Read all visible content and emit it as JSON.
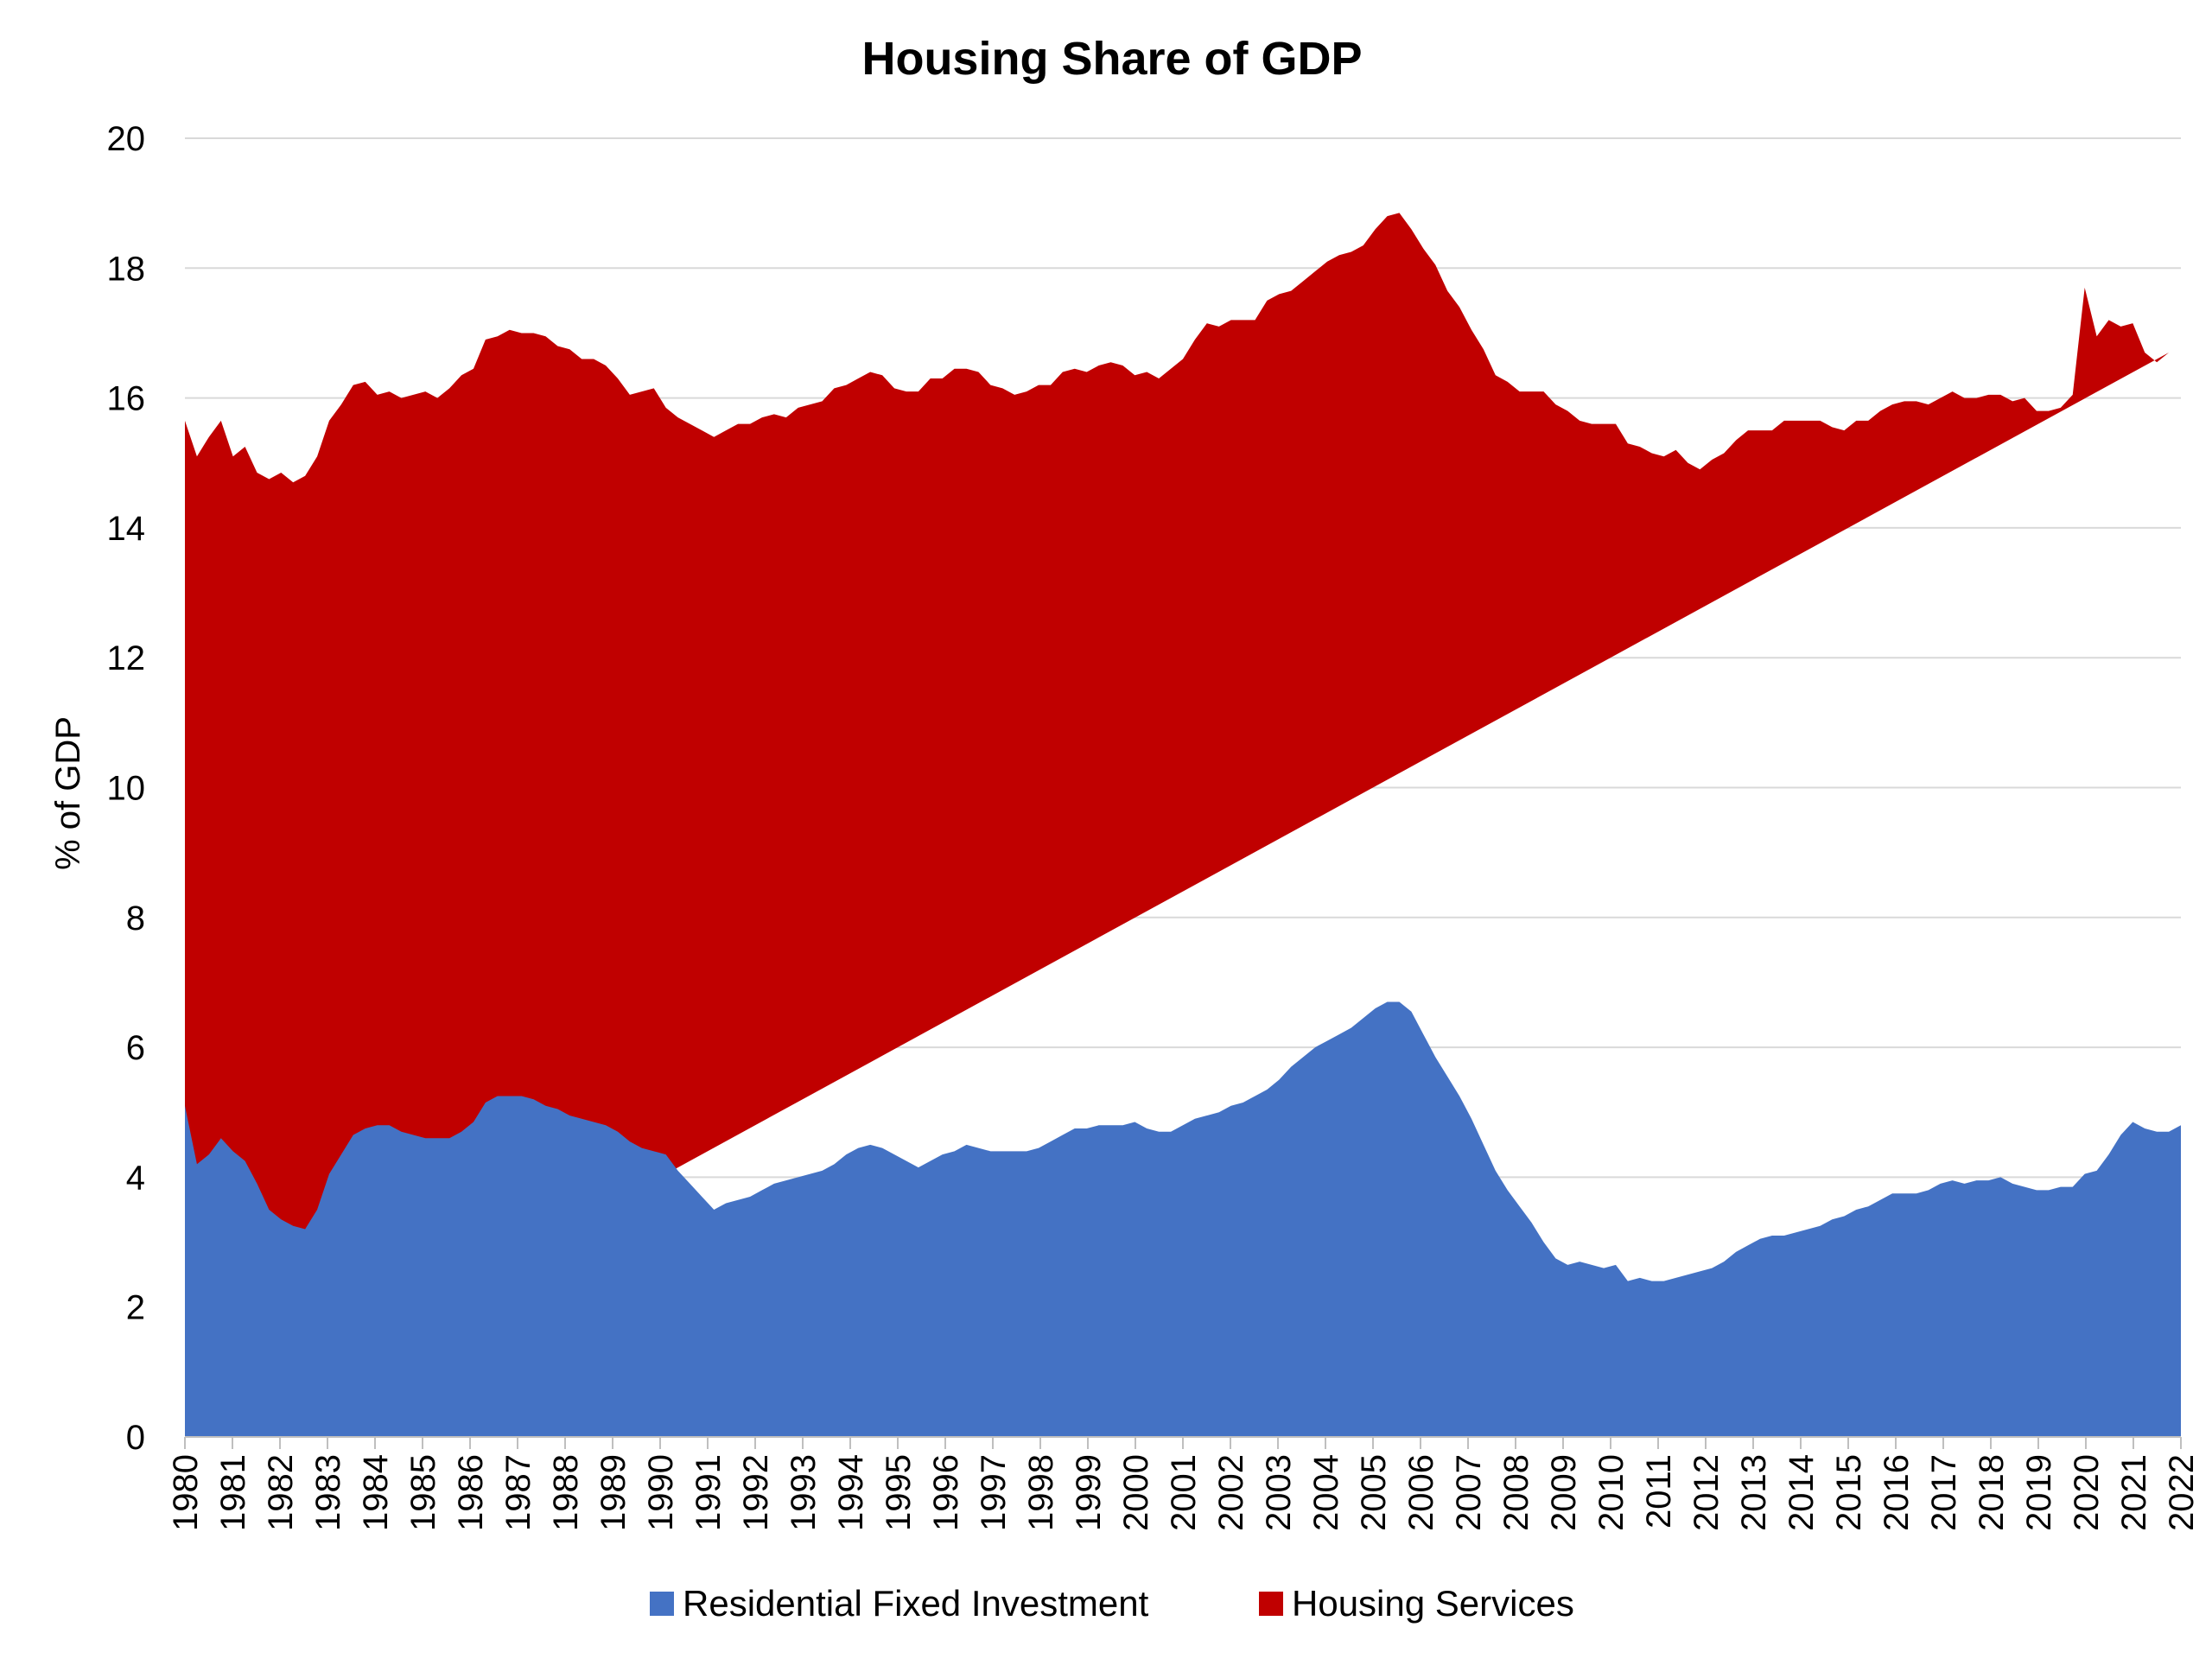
{
  "chart_data": {
    "type": "area",
    "stacked": true,
    "title": "Housing Share of GDP",
    "xlabel": "",
    "ylabel": "% of GDP",
    "ylim": [
      0,
      20
    ],
    "xlim": [
      1980,
      2022
    ],
    "y_ticks": [
      0,
      2,
      4,
      6,
      8,
      10,
      12,
      14,
      16,
      18,
      20
    ],
    "x_ticks": [
      "1980",
      "1981",
      "1982",
      "1983",
      "1984",
      "1985",
      "1986",
      "1987",
      "1988",
      "1989",
      "1990",
      "1991",
      "1992",
      "1993",
      "1994",
      "1995",
      "1996",
      "1997",
      "1998",
      "1999",
      "2000",
      "2001",
      "2002",
      "2003",
      "2004",
      "2005",
      "2006",
      "2007",
      "2008",
      "2009",
      "2010",
      "2011",
      "2012",
      "2013",
      "2014",
      "2015",
      "2016",
      "2017",
      "2018",
      "2019",
      "2020",
      "2021",
      "2022"
    ],
    "grid": "horizontal",
    "legend_position": "bottom",
    "x_frequency": "quarterly",
    "series": [
      {
        "name": "Residential Fixed Investment",
        "color": "#4472C4",
        "values": [
          5.1,
          4.2,
          4.35,
          4.6,
          4.4,
          4.25,
          3.9,
          3.5,
          3.35,
          3.25,
          3.2,
          3.5,
          4.05,
          4.35,
          4.65,
          4.75,
          4.8,
          4.8,
          4.7,
          4.65,
          4.6,
          4.6,
          4.6,
          4.7,
          4.85,
          5.15,
          5.25,
          5.25,
          5.25,
          5.2,
          5.1,
          5.05,
          4.95,
          4.9,
          4.85,
          4.8,
          4.7,
          4.55,
          4.45,
          4.4,
          4.35,
          4.1,
          3.9,
          3.7,
          3.5,
          3.6,
          3.65,
          3.7,
          3.8,
          3.9,
          3.95,
          4.0,
          4.05,
          4.1,
          4.2,
          4.35,
          4.45,
          4.5,
          4.45,
          4.35,
          4.25,
          4.15,
          4.25,
          4.35,
          4.4,
          4.5,
          4.45,
          4.4,
          4.4,
          4.4,
          4.4,
          4.45,
          4.55,
          4.65,
          4.75,
          4.75,
          4.8,
          4.8,
          4.8,
          4.85,
          4.75,
          4.7,
          4.7,
          4.8,
          4.9,
          4.95,
          5.0,
          5.1,
          5.15,
          5.25,
          5.35,
          5.5,
          5.7,
          5.85,
          6.0,
          6.1,
          6.2,
          6.3,
          6.45,
          6.6,
          6.7,
          6.7,
          6.55,
          6.2,
          5.85,
          5.55,
          5.25,
          4.9,
          4.5,
          4.1,
          3.8,
          3.55,
          3.3,
          3.0,
          2.75,
          2.65,
          2.7,
          2.65,
          2.6,
          2.65,
          2.4,
          2.45,
          2.4,
          2.4,
          2.45,
          2.5,
          2.55,
          2.6,
          2.7,
          2.85,
          2.95,
          3.05,
          3.1,
          3.1,
          3.15,
          3.2,
          3.25,
          3.35,
          3.4,
          3.5,
          3.55,
          3.65,
          3.75,
          3.75,
          3.75,
          3.8,
          3.9,
          3.95,
          3.9,
          3.95,
          3.95,
          4.0,
          3.9,
          3.85,
          3.8,
          3.8,
          3.85,
          3.85,
          4.05,
          4.1,
          4.35,
          4.65,
          4.85,
          4.75,
          4.7,
          4.7,
          4.8
        ]
      },
      {
        "name": "Housing Services",
        "color": "#C00000",
        "values": [
          10.55,
          10.9,
          11.05,
          11.05,
          10.7,
          11.0,
          10.95,
          11.25,
          11.5,
          11.45,
          11.6,
          11.6,
          11.6,
          11.55,
          11.55,
          11.5,
          11.25,
          11.3,
          11.3,
          11.4,
          11.5,
          11.4,
          11.55,
          11.65,
          11.6,
          11.75,
          11.7,
          11.8,
          11.75,
          11.8,
          11.85,
          11.75,
          11.8,
          11.7,
          11.75,
          11.7,
          11.6,
          11.5,
          11.65,
          11.75,
          11.5,
          11.6,
          11.7,
          11.8,
          11.9,
          11.9,
          11.95,
          11.9,
          11.9,
          11.85,
          11.75,
          11.85,
          11.85,
          11.85,
          11.95,
          11.85,
          11.85,
          11.9,
          11.9,
          11.8,
          11.85,
          11.95,
          12.05,
          11.95,
          12.05,
          11.95,
          11.95,
          11.8,
          11.75,
          11.65,
          11.7,
          11.75,
          11.65,
          11.75,
          11.7,
          11.65,
          11.7,
          11.75,
          11.7,
          11.5,
          11.65,
          11.6,
          11.75,
          11.8,
          12.0,
          12.2,
          12.1,
          12.1,
          12.05,
          11.95,
          12.15,
          12.1,
          11.95,
          11.95,
          11.95,
          12.0,
          12.0,
          11.95,
          11.9,
          12.0,
          12.1,
          12.15,
          12.05,
          12.1,
          12.2,
          12.1,
          12.15,
          12.15,
          12.25,
          12.25,
          12.45,
          12.55,
          12.8,
          13.1,
          13.15,
          13.15,
          12.95,
          12.95,
          13.0,
          12.95,
          12.9,
          12.8,
          12.75,
          12.7,
          12.75,
          12.5,
          12.35,
          12.45,
          12.45,
          12.5,
          12.55,
          12.45,
          12.4,
          12.55,
          12.5,
          12.45,
          12.4,
          12.2,
          12.1,
          12.15,
          12.1,
          12.15,
          12.15,
          12.2,
          12.2,
          12.1,
          12.1,
          12.15,
          12.1,
          12.05,
          12.1,
          12.05,
          12.05,
          12.15,
          12.0,
          12.0,
          12.0,
          12.2,
          13.65,
          12.85,
          12.85,
          12.45,
          12.3,
          11.95,
          11.85,
          12.0
        ]
      }
    ]
  }
}
